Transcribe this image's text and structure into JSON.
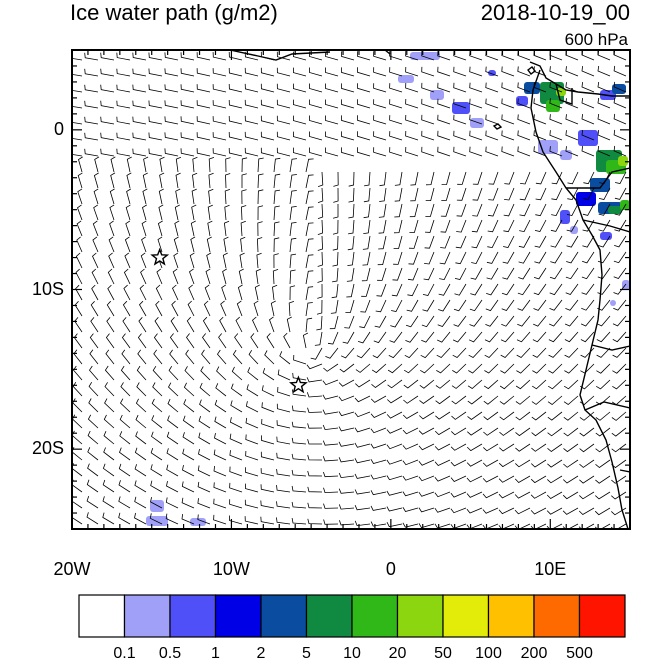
{
  "header": {
    "title": "Ice water path (g/m2)",
    "datetime": "2018-10-19_00",
    "level": "600 hPa"
  },
  "map": {
    "lon_range": [
      -20,
      15
    ],
    "lat_range": [
      -25,
      5
    ],
    "y_ticks": [
      {
        "lat": 0,
        "label": "0"
      },
      {
        "lat": -10,
        "label": "10S"
      },
      {
        "lat": -20,
        "label": "20S"
      }
    ],
    "x_ticks": [
      {
        "lon": -20,
        "label": "20W"
      },
      {
        "lon": -10,
        "label": "10W"
      },
      {
        "lon": 0,
        "label": "0"
      },
      {
        "lon": 10,
        "label": "10E"
      }
    ],
    "markers": [
      {
        "name": "star-marker-1",
        "lon": -14.5,
        "lat": -8.0
      },
      {
        "name": "star-marker-2",
        "lon": -5.8,
        "lat": -16.0
      }
    ],
    "colorbar": {
      "colors": [
        "#ffffff",
        "#a0a0f8",
        "#5050f8",
        "#0000e6",
        "#0a4da0",
        "#108a40",
        "#30b818",
        "#8cd610",
        "#e2ec08",
        "#ffc000",
        "#ff6a00",
        "#ff1400"
      ],
      "labels": [
        "0.1",
        "0.5",
        "1",
        "2",
        "5",
        "10",
        "20",
        "50",
        "100",
        "200",
        "500"
      ]
    }
  }
}
